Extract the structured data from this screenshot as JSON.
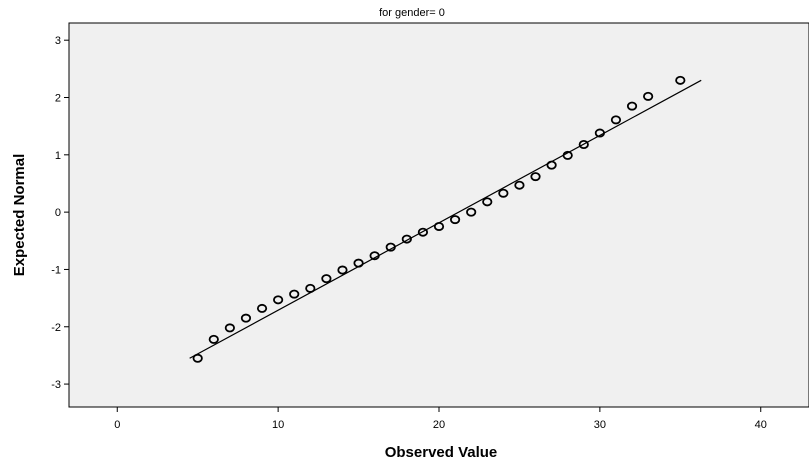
{
  "chart_data": {
    "type": "scatter",
    "title": "for gender= 0",
    "xlabel": "Observed Value",
    "ylabel": "Expected Normal",
    "xlim": [
      -3,
      43
    ],
    "ylim": [
      -3.4,
      3.3
    ],
    "xticks": [
      0,
      10,
      20,
      30,
      40
    ],
    "yticks": [
      -3,
      -2,
      -1,
      0,
      1,
      2,
      3
    ],
    "grid": false,
    "background": "#f0f0f0",
    "reference_line": {
      "x": [
        4.5,
        36.3
      ],
      "y": [
        -2.55,
        2.3
      ]
    },
    "points": [
      {
        "x": 5,
        "y": -2.55
      },
      {
        "x": 6,
        "y": -2.22
      },
      {
        "x": 7,
        "y": -2.02
      },
      {
        "x": 8,
        "y": -1.85
      },
      {
        "x": 9,
        "y": -1.68
      },
      {
        "x": 10,
        "y": -1.53
      },
      {
        "x": 11,
        "y": -1.43
      },
      {
        "x": 12,
        "y": -1.33
      },
      {
        "x": 13,
        "y": -1.16
      },
      {
        "x": 14,
        "y": -1.01
      },
      {
        "x": 15,
        "y": -0.89
      },
      {
        "x": 16,
        "y": -0.76
      },
      {
        "x": 17,
        "y": -0.61
      },
      {
        "x": 18,
        "y": -0.47
      },
      {
        "x": 19,
        "y": -0.35
      },
      {
        "x": 20,
        "y": -0.25
      },
      {
        "x": 21,
        "y": -0.13
      },
      {
        "x": 22,
        "y": 0.0
      },
      {
        "x": 23,
        "y": 0.18
      },
      {
        "x": 24,
        "y": 0.33
      },
      {
        "x": 25,
        "y": 0.47
      },
      {
        "x": 26,
        "y": 0.62
      },
      {
        "x": 27,
        "y": 0.82
      },
      {
        "x": 28,
        "y": 0.99
      },
      {
        "x": 29,
        "y": 1.18
      },
      {
        "x": 30,
        "y": 1.38
      },
      {
        "x": 31,
        "y": 1.61
      },
      {
        "x": 32,
        "y": 1.85
      },
      {
        "x": 33,
        "y": 2.02
      },
      {
        "x": 35,
        "y": 2.3
      }
    ]
  }
}
